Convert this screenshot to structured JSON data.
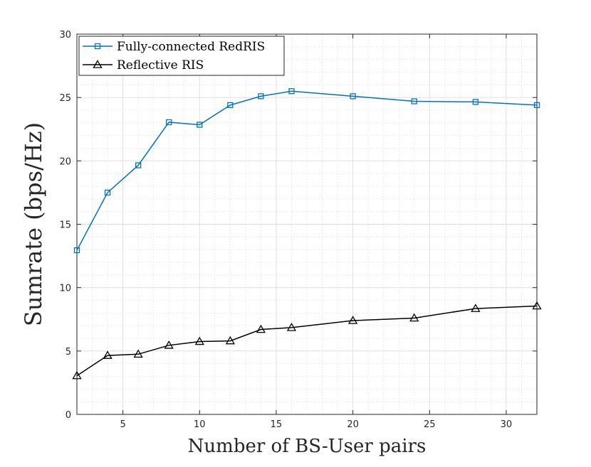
{
  "chart_data": {
    "type": "line",
    "title": "",
    "xlabel": "Number of BS-User pairs",
    "ylabel": "Sumrate (bps/Hz)",
    "xlim": [
      2,
      32
    ],
    "ylim": [
      0,
      30
    ],
    "xticks": [
      5,
      10,
      15,
      20,
      25,
      30
    ],
    "yticks": [
      0,
      5,
      10,
      15,
      20,
      25,
      30
    ],
    "grid": true,
    "minor_grid": true,
    "legend_position": "top-left",
    "series": [
      {
        "name": "Fully-connected RedRIS",
        "color": "#0072BD",
        "marker": "square",
        "x": [
          2,
          4,
          6,
          8,
          10,
          12,
          14,
          16,
          20,
          24,
          28,
          32
        ],
        "values": [
          12.95,
          17.5,
          19.65,
          23.05,
          22.85,
          24.4,
          25.1,
          25.5,
          25.1,
          24.7,
          24.65,
          24.4
        ]
      },
      {
        "name": "Reflective RIS",
        "color": "#000000",
        "marker": "triangle",
        "x": [
          2,
          4,
          6,
          8,
          10,
          12,
          14,
          16,
          20,
          24,
          28,
          32
        ],
        "values": [
          3.05,
          4.65,
          4.75,
          5.45,
          5.75,
          5.8,
          6.7,
          6.85,
          7.4,
          7.6,
          8.35,
          8.55
        ]
      }
    ]
  }
}
